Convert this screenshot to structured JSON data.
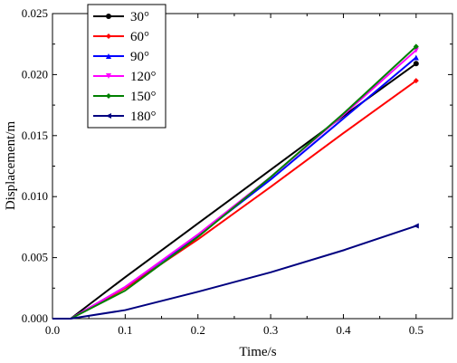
{
  "chart_data": {
    "type": "line",
    "title": "",
    "xlabel": "Time/s",
    "ylabel": "Displacement/m",
    "xlim": [
      0.0,
      0.55
    ],
    "ylim": [
      0.0,
      0.025
    ],
    "xticks": [
      "0.0",
      "0.1",
      "0.2",
      "0.3",
      "0.4",
      "0.5"
    ],
    "yticks": [
      "0.000",
      "0.005",
      "0.010",
      "0.015",
      "0.020",
      "0.025"
    ],
    "grid": false,
    "legend_position": "top-left",
    "series": [
      {
        "name": "30°",
        "color": "#000000",
        "marker": "circle",
        "x": [
          0.0,
          0.025,
          0.1,
          0.2,
          0.3,
          0.4,
          0.5
        ],
        "y": [
          0.0,
          0.0,
          0.0034,
          0.0078,
          0.0122,
          0.0166,
          0.0209
        ]
      },
      {
        "name": "60°",
        "color": "#ff0000",
        "marker": "diamond",
        "x": [
          0.0,
          0.025,
          0.1,
          0.2,
          0.3,
          0.4,
          0.5
        ],
        "y": [
          0.0,
          0.0,
          0.0025,
          0.0065,
          0.0108,
          0.0152,
          0.0195
        ]
      },
      {
        "name": "90°",
        "color": "#0000ff",
        "marker": "triangle-up",
        "x": [
          0.0,
          0.025,
          0.1,
          0.2,
          0.3,
          0.4,
          0.5
        ],
        "y": [
          0.0,
          0.0,
          0.0026,
          0.0068,
          0.0114,
          0.0164,
          0.0214
        ]
      },
      {
        "name": "120°",
        "color": "#ff00ff",
        "marker": "triangle-down",
        "x": [
          0.0,
          0.025,
          0.1,
          0.2,
          0.3,
          0.4,
          0.5
        ],
        "y": [
          0.0,
          0.0,
          0.0026,
          0.0069,
          0.0116,
          0.0167,
          0.022
        ]
      },
      {
        "name": "150°",
        "color": "#008000",
        "marker": "diamond",
        "x": [
          0.0,
          0.025,
          0.1,
          0.2,
          0.3,
          0.4,
          0.5
        ],
        "y": [
          0.0,
          0.0,
          0.0023,
          0.0067,
          0.0116,
          0.0168,
          0.0223
        ]
      },
      {
        "name": "180°",
        "color": "#000080",
        "marker": "triangle-left",
        "x": [
          0.0,
          0.025,
          0.1,
          0.2,
          0.3,
          0.4,
          0.5
        ],
        "y": [
          0.0,
          0.0,
          0.0007,
          0.0022,
          0.0038,
          0.0056,
          0.0076
        ]
      }
    ]
  }
}
